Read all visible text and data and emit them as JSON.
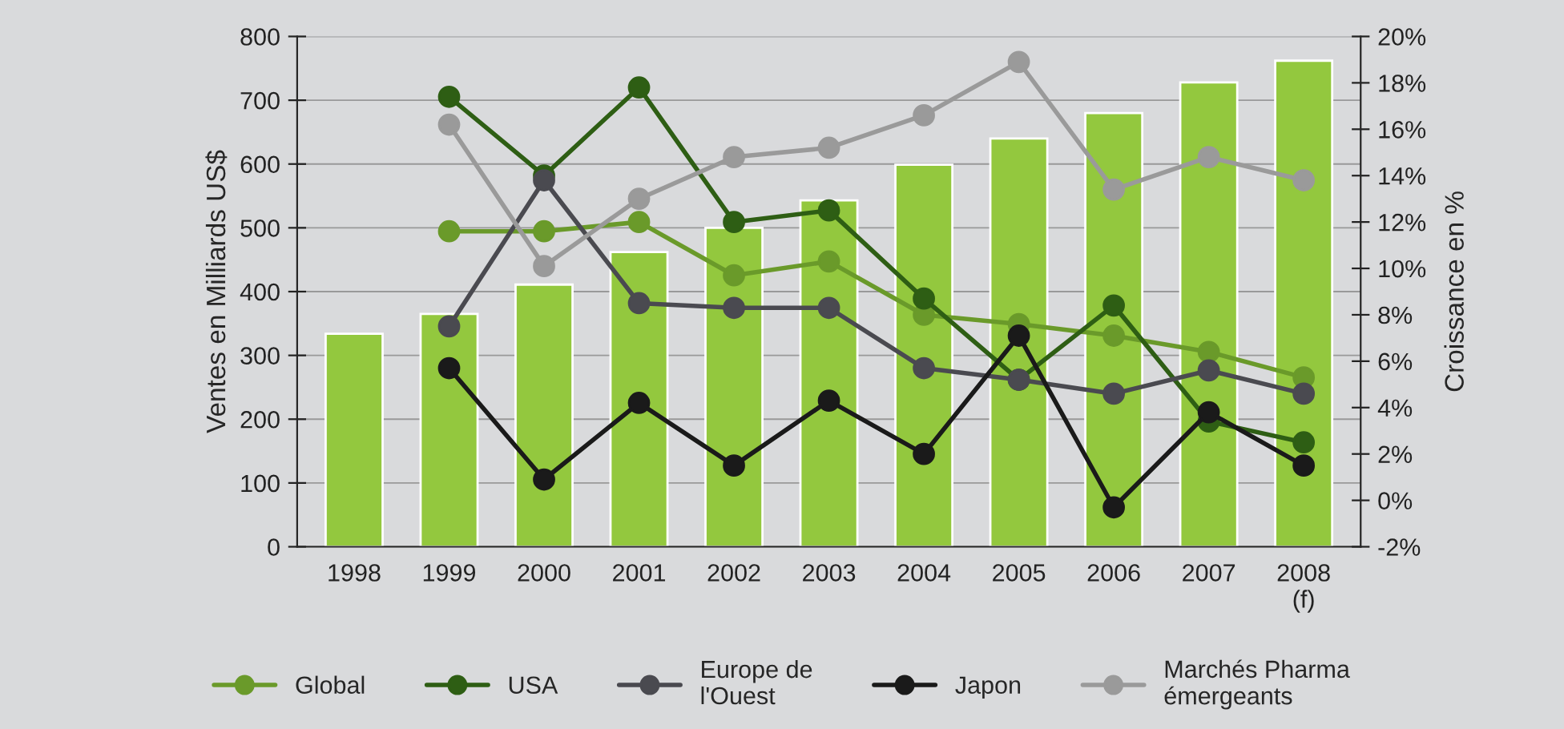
{
  "chart_data": {
    "type": "bar",
    "xlabel": null,
    "ylabel": "Ventes en Milliards US$",
    "y2label": "Croissance en %",
    "categories": [
      "1998",
      "1999",
      "2000",
      "2001",
      "2002",
      "2003",
      "2004",
      "2005",
      "2006",
      "2007",
      "2008\n(f)"
    ],
    "ylim": [
      0,
      800
    ],
    "yticks": [
      0,
      100,
      200,
      300,
      400,
      500,
      600,
      700,
      800
    ],
    "y2lim": [
      -2,
      20
    ],
    "y2ticks": [
      {
        "value": -2,
        "label": "-2%"
      },
      {
        "value": 0,
        "label": "0%"
      },
      {
        "value": 2,
        "label": "2%"
      },
      {
        "value": 4,
        "label": "4%"
      },
      {
        "value": 6,
        "label": "6%"
      },
      {
        "value": 8,
        "label": "8%"
      },
      {
        "value": 10,
        "label": "10%"
      },
      {
        "value": 12,
        "label": "12%"
      },
      {
        "value": 14,
        "label": "14%"
      },
      {
        "value": 16,
        "label": "16%"
      },
      {
        "value": 18,
        "label": "18%"
      },
      {
        "value": 20,
        "label": "20%"
      }
    ],
    "grid": "y",
    "legend": "bottom",
    "marker": "circle",
    "line_style": "solid",
    "series": [
      {
        "color": "#93c83e",
        "values": [
          334,
          365,
          411,
          462,
          500,
          543,
          599,
          640,
          680,
          728,
          762
        ]
      },
      {
        "type": "line",
        "axis": "y2",
        "name": "Global",
        "color": "#6a9a2a",
        "values": [
          null,
          11.6,
          11.6,
          12.0,
          9.7,
          10.3,
          8.0,
          7.6,
          7.1,
          6.4,
          5.3
        ]
      },
      {
        "type": "line",
        "axis": "y2",
        "name": "USA",
        "color": "#2e5e14",
        "values": [
          null,
          17.4,
          14.0,
          17.8,
          12.0,
          12.5,
          8.7,
          5.2,
          8.4,
          3.4,
          2.5
        ]
      },
      {
        "type": "line",
        "axis": "y2",
        "name": "Europe de\nl'Ouest",
        "color": "#4a4a50",
        "values": [
          null,
          7.5,
          13.8,
          8.5,
          8.3,
          8.3,
          5.7,
          5.2,
          4.6,
          5.6,
          4.6
        ]
      },
      {
        "type": "line",
        "axis": "y2",
        "name": "Japon",
        "color": "#1a1a1a",
        "values": [
          null,
          5.7,
          0.9,
          4.2,
          1.5,
          4.3,
          2.0,
          7.1,
          -0.3,
          3.8,
          1.5
        ]
      },
      {
        "type": "line",
        "axis": "y2",
        "name": "Marchés Pharma\némergeants",
        "color": "#9a9a9a",
        "values": [
          null,
          16.2,
          10.1,
          13.0,
          14.8,
          15.2,
          16.6,
          18.9,
          13.4,
          14.8,
          13.8
        ]
      }
    ]
  }
}
